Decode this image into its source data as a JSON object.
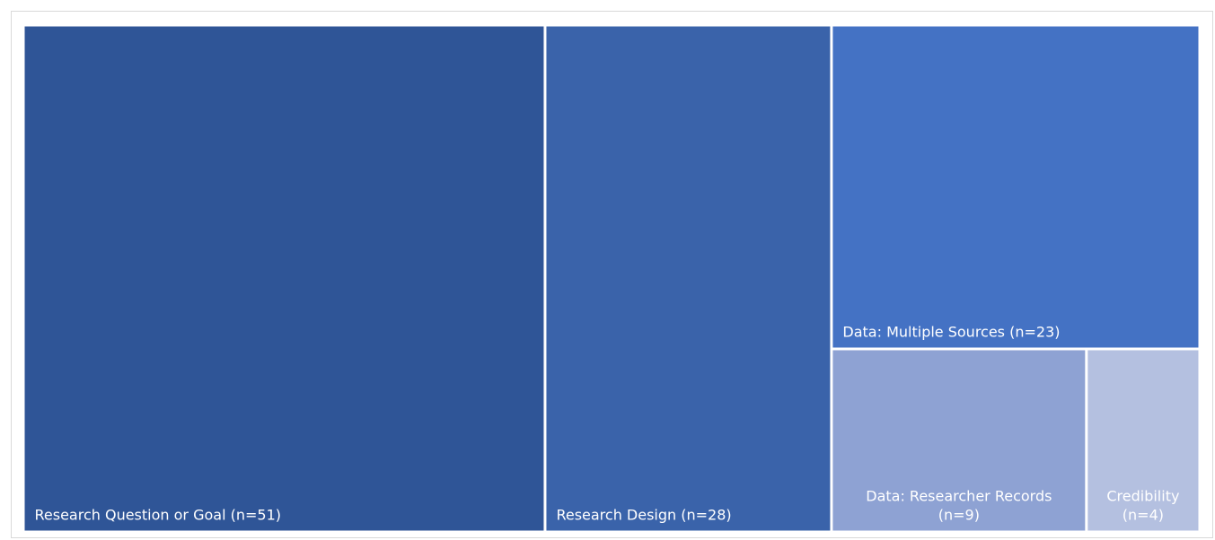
{
  "chart_data": {
    "type": "treemap",
    "items": [
      {
        "label": "Research Question or Goal (n=51)",
        "label_lines": [
          "Research Question or Goal (n=51)"
        ],
        "value": 51,
        "color": "#2f5597",
        "text_color": "#ffffff"
      },
      {
        "label": "Research Design (n=28)",
        "label_lines": [
          "Research Design (n=28)"
        ],
        "value": 28,
        "color": "#3a63aa",
        "text_color": "#ffffff"
      },
      {
        "label": "Data: Multiple Sources (n=23)",
        "label_lines": [
          "Data: Multiple Sources (n=23)"
        ],
        "value": 23,
        "color": "#4472c4",
        "text_color": "#ffffff"
      },
      {
        "label": "Data: Researcher Records (n=9)",
        "label_lines": [
          "Data: Researcher Records",
          "(n=9)"
        ],
        "value": 9,
        "color": "#8ea2d3",
        "text_color": "#ffffff"
      },
      {
        "label": "Credibility (n=4)",
        "label_lines": [
          "Credibility",
          "(n=4)"
        ],
        "value": 4,
        "color": "#b4c0e0",
        "text_color": "#ffffff"
      }
    ]
  }
}
